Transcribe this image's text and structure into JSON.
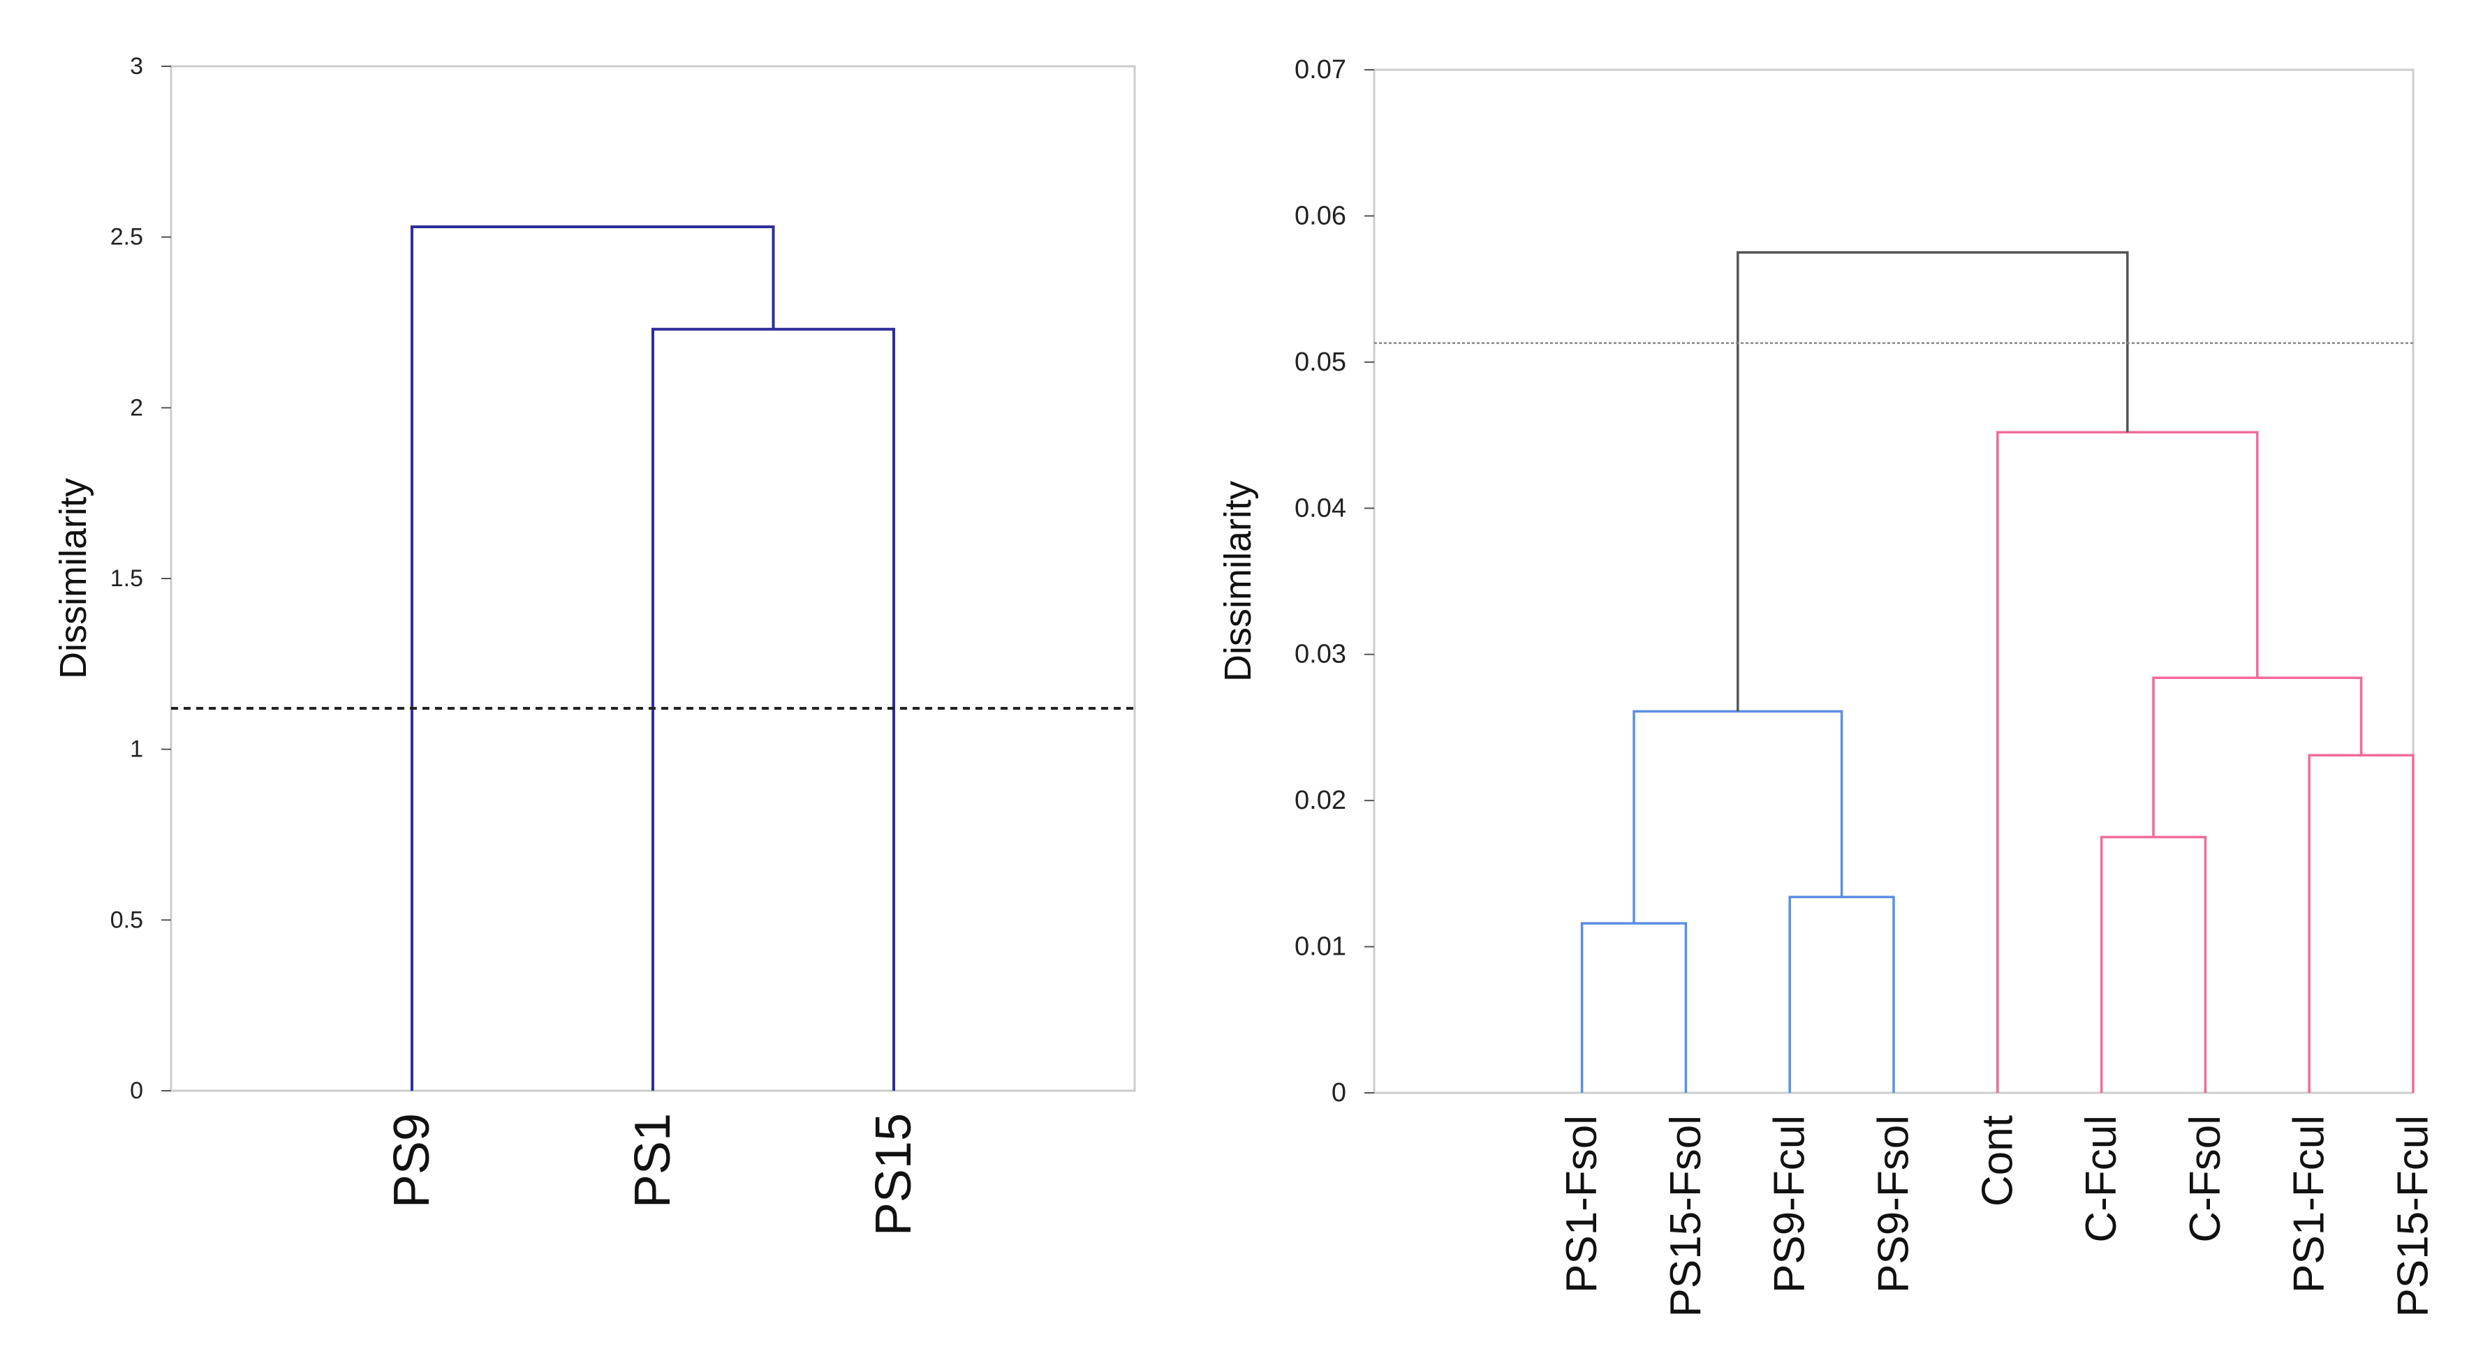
{
  "chart_data": [
    {
      "type": "dendrogram",
      "title": "",
      "xlabel": "",
      "ylabel": "Dissimilarity",
      "ylim": [
        0,
        3
      ],
      "yticks": [
        "0",
        "0.5",
        "1",
        "1.5",
        "2",
        "2.5",
        "3"
      ],
      "leaves": [
        "PS9",
        "PS1",
        "PS15"
      ],
      "leaf_positions": [
        1,
        2,
        3
      ],
      "x_range": [
        0,
        4
      ],
      "threshold": 1.12,
      "line_color": "#2e2e9a",
      "threshold_color": "#222222",
      "merges": [
        {
          "left": {
            "x": 2,
            "y": 0
          },
          "right": {
            "x": 3,
            "y": 0
          },
          "height": 2.23,
          "color": "#2e2e9a"
        },
        {
          "left": {
            "x": 1,
            "y": 0
          },
          "right": {
            "x": 2.5,
            "y": 2.23
          },
          "height": 2.53,
          "color": "#2e2e9a"
        }
      ]
    },
    {
      "type": "dendrogram",
      "title": "",
      "xlabel": "",
      "ylabel": "Dissimilarity",
      "ylim": [
        0,
        0.07
      ],
      "yticks": [
        "0",
        "0.01",
        "0.02",
        "0.03",
        "0.04",
        "0.05",
        "0.06",
        "0.07"
      ],
      "leaves": [
        "PS1-Fsol",
        "PS15-Fsol",
        "PS9-Fcul",
        "PS9-Fsol",
        "Cont",
        "C-Fcul",
        "C-Fsol",
        "PS1-Fcul",
        "PS15-Fcul"
      ],
      "leaf_positions": [
        1,
        2,
        3,
        4,
        5,
        6,
        7,
        8,
        9
      ],
      "x_range": [
        -1,
        9
      ],
      "threshold": 0.0513,
      "line_color": "#555555",
      "threshold_color": "#888888",
      "merges": [
        {
          "left": {
            "x": 1,
            "y": 0
          },
          "right": {
            "x": 2,
            "y": 0
          },
          "height": 0.0116,
          "color": "#5b8fe6"
        },
        {
          "left": {
            "x": 3,
            "y": 0
          },
          "right": {
            "x": 4,
            "y": 0
          },
          "height": 0.0134,
          "color": "#5b8fe6"
        },
        {
          "left": {
            "x": 1.5,
            "y": 0.0116
          },
          "right": {
            "x": 3.5,
            "y": 0.0134
          },
          "height": 0.0261,
          "color": "#5b8fe6"
        },
        {
          "left": {
            "x": 6,
            "y": 0
          },
          "right": {
            "x": 7,
            "y": 0
          },
          "height": 0.0175,
          "color": "#f06b9c"
        },
        {
          "left": {
            "x": 8,
            "y": 0
          },
          "right": {
            "x": 9,
            "y": 0
          },
          "height": 0.0231,
          "color": "#f06b9c"
        },
        {
          "left": {
            "x": 6.5,
            "y": 0.0175
          },
          "right": {
            "x": 8.5,
            "y": 0.0231
          },
          "height": 0.0284,
          "color": "#f06b9c"
        },
        {
          "left": {
            "x": 5,
            "y": 0
          },
          "right": {
            "x": 7.5,
            "y": 0.0284
          },
          "height": 0.0452,
          "color": "#f06b9c"
        },
        {
          "left": {
            "x": 2.5,
            "y": 0.0261
          },
          "right": {
            "x": 6.25,
            "y": 0.0452
          },
          "height": 0.0575,
          "color": "#555555"
        }
      ]
    }
  ]
}
